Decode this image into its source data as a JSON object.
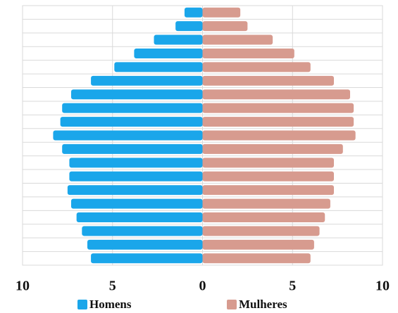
{
  "chart_data": {
    "type": "pyramid",
    "categories": [
      null,
      null,
      null,
      null,
      null,
      null,
      null,
      null,
      null,
      null,
      null,
      null,
      null,
      null,
      null,
      null,
      null,
      null,
      null
    ],
    "series": [
      {
        "name": "Homens",
        "color": "#1aa6ea",
        "values": [
          -1.0,
          -1.5,
          -2.7,
          -3.8,
          -4.9,
          -6.2,
          -7.3,
          -7.8,
          -7.9,
          -8.3,
          -7.8,
          -7.4,
          -7.4,
          -7.5,
          -7.3,
          -7.0,
          -6.7,
          -6.4,
          -6.2
        ]
      },
      {
        "name": "Mulheres",
        "color": "#d79b8f",
        "values": [
          2.1,
          2.5,
          3.9,
          5.1,
          6.0,
          7.3,
          8.2,
          8.4,
          8.4,
          8.5,
          7.8,
          7.3,
          7.3,
          7.3,
          7.1,
          6.8,
          6.5,
          6.2,
          6.0
        ]
      }
    ],
    "xlim": [
      -10,
      10
    ],
    "xticks": [
      {
        "value": -10,
        "label": "10"
      },
      {
        "value": -5,
        "label": "5"
      },
      0,
      5,
      10
    ],
    "grid": true
  }
}
